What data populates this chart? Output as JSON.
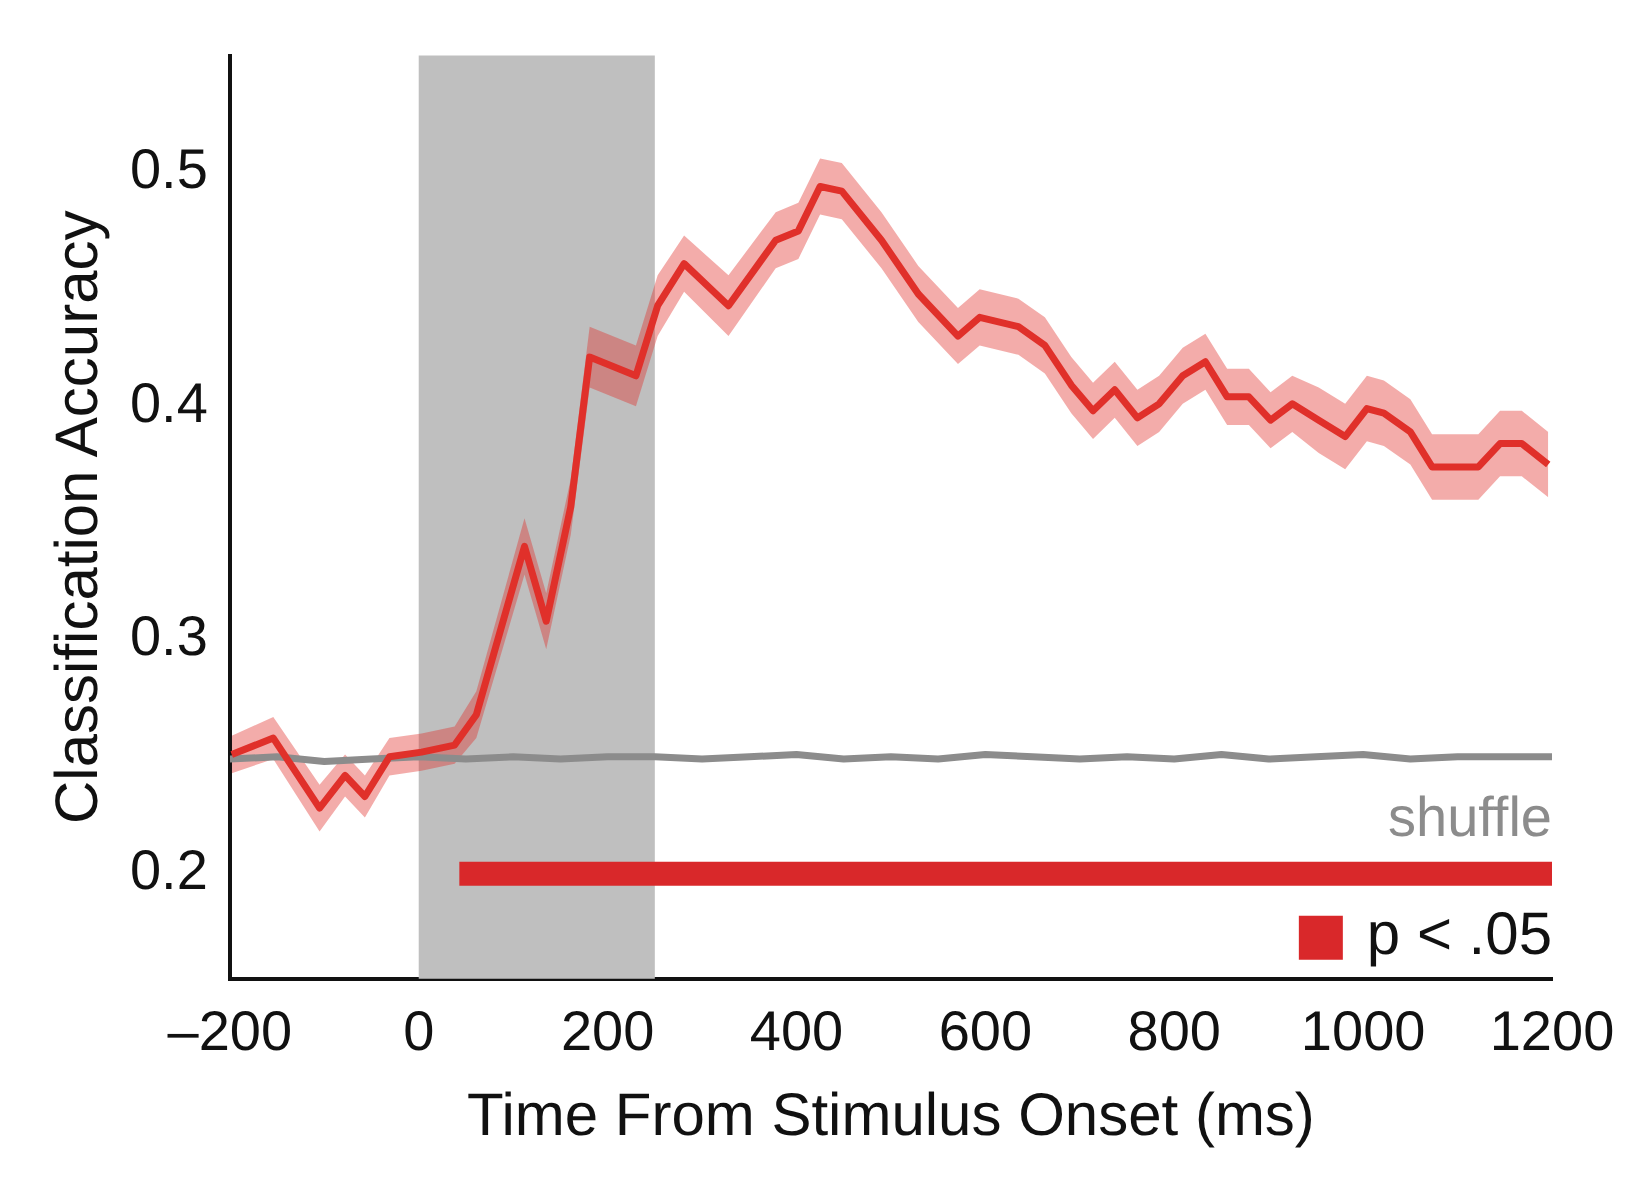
{
  "chart_data": {
    "type": "line",
    "xlabel": "Time From Stimulus Onset (ms)",
    "ylabel": "Classification Accuracy",
    "xlim": [
      -200,
      1200
    ],
    "xticks": [
      {
        "value": -200,
        "label": "–200"
      },
      0,
      200,
      400,
      600,
      800,
      1000,
      1200
    ],
    "ylim": [
      0.155,
      0.55
    ],
    "yticks": [
      0.2,
      0.3,
      0.4,
      0.5
    ],
    "grid": false,
    "marker": "none",
    "line_style": "solid",
    "bands": [
      {
        "axis": "x",
        "from": 0,
        "to": 250,
        "color": "#bfbfbf"
      }
    ],
    "series": [
      {
        "color": "#e0302a",
        "x": [
          -198,
          -154,
          -105,
          -78,
          -57,
          -31,
          3,
          38,
          61,
          112,
          135,
          161,
          181,
          230,
          253,
          281,
          328,
          378,
          402,
          425,
          448,
          490,
          529,
          571,
          594,
          635,
          663,
          691,
          714,
          737,
          761,
          784,
          809,
          833,
          856,
          879,
          902,
          925,
          953,
          981,
          1004,
          1022,
          1050,
          1073,
          1122,
          1145,
          1168,
          1196
        ],
        "values": [
          0.251,
          0.258,
          0.228,
          0.242,
          0.233,
          0.25,
          0.252,
          0.255,
          0.268,
          0.34,
          0.308,
          0.357,
          0.421,
          0.413,
          0.443,
          0.461,
          0.443,
          0.471,
          0.475,
          0.494,
          0.492,
          0.471,
          0.448,
          0.43,
          0.438,
          0.434,
          0.426,
          0.409,
          0.398,
          0.407,
          0.395,
          0.401,
          0.413,
          0.419,
          0.404,
          0.404,
          0.394,
          0.401,
          0.394,
          0.387,
          0.399,
          0.397,
          0.389,
          0.374,
          0.374,
          0.384,
          0.384,
          0.375
        ],
        "lower": [
          0.243,
          0.249,
          0.218,
          0.233,
          0.224,
          0.242,
          0.244,
          0.247,
          0.258,
          0.328,
          0.296,
          0.345,
          0.408,
          0.4,
          0.43,
          0.449,
          0.43,
          0.459,
          0.463,
          0.482,
          0.48,
          0.459,
          0.436,
          0.418,
          0.426,
          0.422,
          0.414,
          0.397,
          0.386,
          0.395,
          0.383,
          0.389,
          0.401,
          0.407,
          0.392,
          0.392,
          0.382,
          0.389,
          0.38,
          0.373,
          0.385,
          0.383,
          0.375,
          0.36,
          0.36,
          0.37,
          0.37,
          0.361
        ],
        "upper": [
          0.259,
          0.267,
          0.238,
          0.251,
          0.242,
          0.258,
          0.26,
          0.263,
          0.278,
          0.352,
          0.32,
          0.369,
          0.434,
          0.426,
          0.456,
          0.473,
          0.456,
          0.483,
          0.487,
          0.506,
          0.504,
          0.483,
          0.46,
          0.442,
          0.45,
          0.446,
          0.438,
          0.421,
          0.41,
          0.419,
          0.407,
          0.413,
          0.425,
          0.431,
          0.416,
          0.416,
          0.406,
          0.413,
          0.408,
          0.401,
          0.413,
          0.411,
          0.403,
          0.388,
          0.388,
          0.398,
          0.398,
          0.389
        ]
      },
      {
        "name": "shuffle",
        "color": "#8c8c8c",
        "x": [
          -200,
          -150,
          -100,
          -50,
          0,
          50,
          100,
          150,
          200,
          250,
          300,
          350,
          400,
          450,
          500,
          550,
          600,
          650,
          700,
          750,
          800,
          850,
          900,
          950,
          1000,
          1050,
          1100,
          1150,
          1200
        ],
        "values": [
          0.249,
          0.25,
          0.248,
          0.249,
          0.25,
          0.249,
          0.25,
          0.249,
          0.25,
          0.25,
          0.249,
          0.25,
          0.251,
          0.249,
          0.25,
          0.249,
          0.251,
          0.25,
          0.249,
          0.25,
          0.249,
          0.251,
          0.249,
          0.25,
          0.251,
          0.249,
          0.25,
          0.25,
          0.25
        ]
      },
      {
        "name": "p < .05",
        "color": "#d9282a",
        "x": [
          43,
          1200
        ],
        "values": [
          0.2,
          0.2
        ]
      }
    ]
  }
}
